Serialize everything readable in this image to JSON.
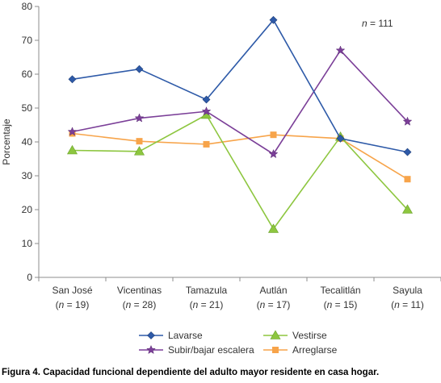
{
  "chart_data": {
    "type": "line",
    "ylabel": "Porcentaje",
    "ylim": [
      0,
      80
    ],
    "yticks": [
      0,
      10,
      20,
      30,
      40,
      50,
      60,
      70,
      80
    ],
    "grid": false,
    "legend_position": "bottom",
    "annotation": {
      "prefix": "n",
      "text": " = 111"
    },
    "categories": [
      {
        "name": "San José",
        "n_prefix": "(",
        "n_var": "n",
        "n_value": " = 19)"
      },
      {
        "name": "Vicentinas",
        "n_prefix": "(",
        "n_var": "n",
        "n_value": " = 28)"
      },
      {
        "name": "Tamazula",
        "n_prefix": "(",
        "n_var": "n",
        "n_value": " = 21)"
      },
      {
        "name": "Autlán",
        "n_prefix": "(",
        "n_var": "n",
        "n_value": " = 17)"
      },
      {
        "name": "Tecalitlán",
        "n_prefix": "(",
        "n_var": "n",
        "n_value": " = 15)"
      },
      {
        "name": "Sayula",
        "n_prefix": "(",
        "n_var": "n",
        "n_value": " = 11)"
      }
    ],
    "series": [
      {
        "name": "Lavarse",
        "color": "#2e5aa8",
        "marker": "diamond",
        "values": [
          58.5,
          61.5,
          52.5,
          76,
          41,
          37
        ]
      },
      {
        "name": "Vestirse",
        "color": "#8dc63f",
        "marker": "triangle",
        "values": [
          37.5,
          37.2,
          48,
          14.3,
          41.5,
          20
        ]
      },
      {
        "name": "Subir/bajar escalera",
        "color": "#7b3f98",
        "marker": "star",
        "values": [
          43,
          47,
          49,
          36.4,
          67,
          46
        ]
      },
      {
        "name": "Arreglarse",
        "color": "#f7a44a",
        "marker": "square",
        "values": [
          42.5,
          40.2,
          39.3,
          42.1,
          41,
          29
        ]
      }
    ]
  },
  "caption": "Figura 4. Capacidad funcional dependiente del adulto mayor residente en casa hogar."
}
